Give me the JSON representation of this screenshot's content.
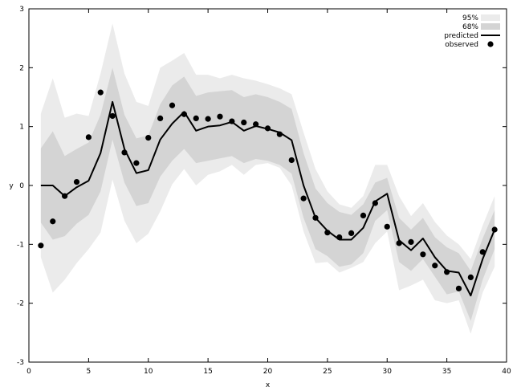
{
  "chart_data": {
    "type": "line",
    "xlabel": "x",
    "ylabel": "y",
    "xlim": [
      0,
      40
    ],
    "ylim": [
      -3,
      3
    ],
    "xticks": [
      0,
      5,
      10,
      15,
      20,
      25,
      30,
      35,
      40
    ],
    "yticks": [
      -3,
      -2,
      -1,
      0,
      1,
      2,
      3
    ],
    "grid": false,
    "legend_position": "top-right",
    "colors": {
      "band95": "#ebebeb",
      "band68": "#d4d4d4",
      "line": "#000000",
      "points": "#000000"
    },
    "legend": [
      {
        "key": "band95",
        "label": "95%"
      },
      {
        "key": "band68",
        "label": "68%"
      },
      {
        "key": "predicted",
        "label": "predicted"
      },
      {
        "key": "observed",
        "label": "observed"
      }
    ],
    "x": [
      1,
      2,
      3,
      4,
      5,
      6,
      7,
      8,
      9,
      10,
      11,
      12,
      13,
      14,
      15,
      16,
      17,
      18,
      19,
      20,
      21,
      22,
      23,
      24,
      25,
      26,
      27,
      28,
      29,
      30,
      31,
      32,
      33,
      34,
      35,
      36,
      37,
      38,
      39
    ],
    "predicted": [
      0,
      0,
      -0.18,
      -0.03,
      0.08,
      0.55,
      1.42,
      0.62,
      0.21,
      0.26,
      0.78,
      1.05,
      1.25,
      0.93,
      1.0,
      1.02,
      1.08,
      0.93,
      1.01,
      0.96,
      0.9,
      0.77,
      0.0,
      -0.55,
      -0.77,
      -0.92,
      -0.92,
      -0.72,
      -0.27,
      -0.14,
      -0.93,
      -1.1,
      -0.9,
      -1.22,
      -1.45,
      -1.48,
      -1.87,
      -1.25,
      -0.75
    ],
    "band68_upper": [
      0.63,
      0.92,
      0.5,
      0.62,
      0.73,
      1.2,
      2.0,
      1.2,
      0.8,
      0.85,
      1.38,
      1.7,
      1.85,
      1.52,
      1.58,
      1.6,
      1.62,
      1.5,
      1.55,
      1.5,
      1.42,
      1.3,
      0.55,
      -0.05,
      -0.3,
      -0.45,
      -0.5,
      -0.32,
      0.05,
      0.13,
      -0.55,
      -0.75,
      -0.55,
      -0.88,
      -1.05,
      -1.15,
      -1.45,
      -0.9,
      -0.42
    ],
    "band68_lower": [
      -0.63,
      -0.92,
      -0.86,
      -0.65,
      -0.5,
      -0.1,
      0.78,
      0.05,
      -0.35,
      -0.3,
      0.15,
      0.42,
      0.62,
      0.38,
      0.42,
      0.46,
      0.5,
      0.38,
      0.45,
      0.42,
      0.35,
      0.2,
      -0.55,
      -1.08,
      -1.2,
      -1.38,
      -1.34,
      -1.15,
      -0.6,
      -0.42,
      -1.3,
      -1.45,
      -1.25,
      -1.55,
      -1.85,
      -1.8,
      -2.3,
      -1.6,
      -1.08
    ],
    "band95_upper": [
      1.22,
      1.82,
      1.15,
      1.22,
      1.18,
      1.9,
      2.75,
      1.9,
      1.42,
      1.35,
      2.0,
      2.12,
      2.25,
      1.88,
      1.88,
      1.82,
      1.88,
      1.82,
      1.78,
      1.72,
      1.65,
      1.55,
      0.9,
      0.28,
      -0.1,
      -0.32,
      -0.38,
      -0.18,
      0.35,
      0.35,
      -0.18,
      -0.52,
      -0.3,
      -0.62,
      -0.85,
      -1.0,
      -1.25,
      -0.68,
      -0.18
    ],
    "band95_lower": [
      -1.22,
      -1.82,
      -1.6,
      -1.32,
      -1.08,
      -0.8,
      0.1,
      -0.6,
      -0.98,
      -0.82,
      -0.44,
      0.02,
      0.28,
      0.0,
      0.18,
      0.24,
      0.35,
      0.18,
      0.35,
      0.38,
      0.3,
      0.0,
      -0.78,
      -1.32,
      -1.3,
      -1.48,
      -1.4,
      -1.3,
      -0.98,
      -0.78,
      -1.78,
      -1.7,
      -1.6,
      -1.95,
      -2.0,
      -1.95,
      -2.52,
      -1.82,
      -1.38
    ],
    "observed": [
      -1.02,
      -0.61,
      -0.18,
      0.06,
      0.82,
      1.58,
      1.18,
      0.56,
      0.38,
      0.81,
      1.14,
      1.36,
      1.21,
      1.14,
      1.13,
      1.17,
      1.09,
      1.07,
      1.04,
      0.97,
      0.87,
      0.43,
      -0.22,
      -0.55,
      -0.8,
      -0.88,
      -0.81,
      -0.51,
      -0.3,
      -0.7,
      -0.98,
      -0.96,
      -1.17,
      -1.36,
      -1.47,
      -1.75,
      -1.56,
      -1.13,
      -0.75
    ]
  }
}
